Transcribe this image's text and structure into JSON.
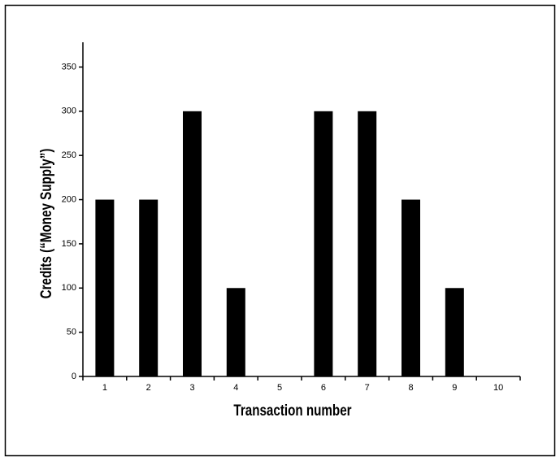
{
  "chart_data": {
    "type": "bar",
    "x_label": "Transaction number",
    "y_label": "Credits (“Money Supply”)",
    "categories": [
      "1",
      "2",
      "3",
      "4",
      "5",
      "6",
      "7",
      "8",
      "9",
      "10"
    ],
    "values": [
      200,
      200,
      300,
      100,
      0,
      300,
      300,
      200,
      100,
      0
    ],
    "color": "#000000",
    "ylim": [
      0,
      378
    ],
    "yticks": [
      0,
      50,
      100,
      150,
      200,
      250,
      300,
      350
    ],
    "grid": false
  }
}
